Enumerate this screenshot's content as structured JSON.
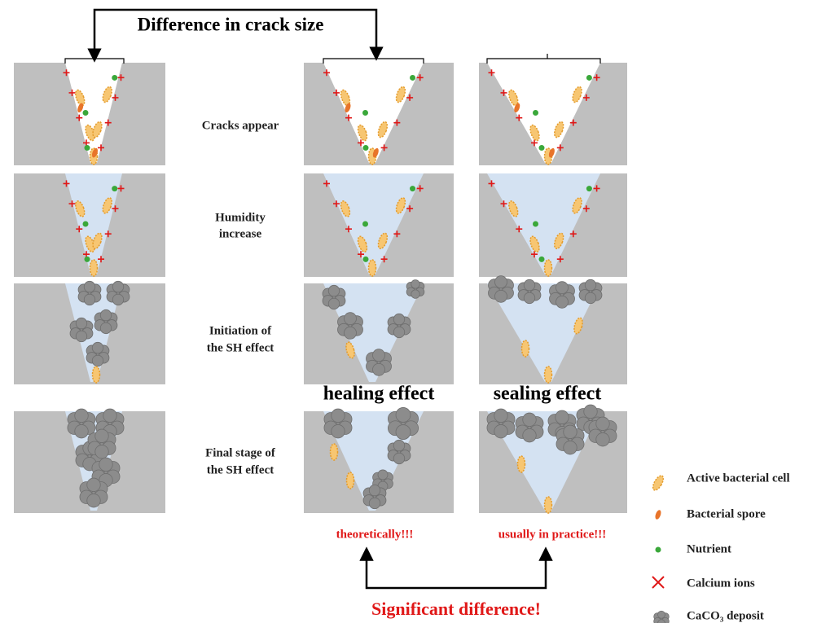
{
  "header": {
    "title": "Difference in crack size"
  },
  "stages": [
    [
      "Cracks appear"
    ],
    [
      "Humidity",
      "increase"
    ],
    [
      "Initiation of",
      "the SH effect"
    ],
    [
      "Final stage of",
      "the SH effect"
    ]
  ],
  "columns": {
    "healing": "healing effect",
    "sealing": "sealing effect"
  },
  "notes": {
    "healing": "theoretically!!!",
    "sealing": "usually in practice!!!"
  },
  "footer": "Significant difference!",
  "legend": [
    "Active bacterial cell",
    "Bacterial spore",
    "Nutrient",
    "Calcium ions",
    "CaCO₃ deposit"
  ]
}
